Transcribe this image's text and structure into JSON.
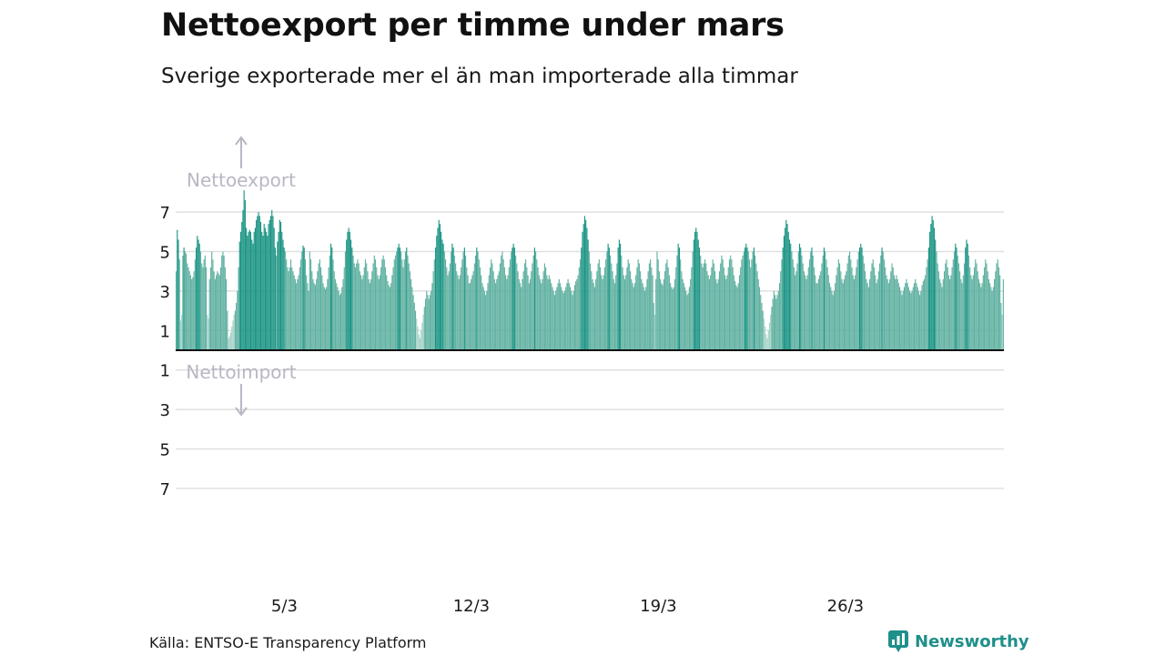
{
  "title": "Nettoexport per timme under mars",
  "subtitle": "Sverige exporterade mer el än man importerade alla timmar",
  "source": "Källa: ENTSO-E Transparency Platform",
  "brand": "Newsworthy",
  "colors": {
    "bar_dark": "#1a9484",
    "bar_light": "#60b1a1",
    "bar_pale": "#a6d3c8",
    "grid": "#e0e0e0",
    "annotation": "#b8b8c4",
    "brand": "#1f8f8a"
  },
  "chart_data": {
    "type": "bar",
    "title": "Nettoexport per timme under mars",
    "subtitle": "Sverige exporterade mer el än man importerade alla timmar",
    "xlabel": "",
    "ylabel": "",
    "x_unit": "day of March (hourly bars)",
    "xlim": [
      1,
      32
    ],
    "ylim": [
      -7.5,
      8.2
    ],
    "grid": true,
    "legend": "none",
    "yticks": [
      {
        "value": 7,
        "label": "7"
      },
      {
        "value": 5,
        "label": "5"
      },
      {
        "value": 3,
        "label": "3"
      },
      {
        "value": 1,
        "label": "1"
      },
      {
        "value": -1,
        "label": "1"
      },
      {
        "value": -3,
        "label": "3"
      },
      {
        "value": -5,
        "label": "5"
      },
      {
        "value": -7,
        "label": "7"
      }
    ],
    "xticks": [
      {
        "value": 5,
        "label": "5/3"
      },
      {
        "value": 12,
        "label": "12/3"
      },
      {
        "value": 19,
        "label": "19/3"
      },
      {
        "value": 26,
        "label": "26/3"
      }
    ],
    "annotations": {
      "export": "Nettoexport",
      "import": "Nettoimport"
    },
    "daily_profile": [
      [
        4.0,
        6.1,
        5.6,
        4.6,
        1.5,
        1.8,
        4.8,
        5.2,
        5.0,
        4.9,
        4.4,
        4.2,
        4.0,
        3.8,
        3.6,
        3.7,
        4.0,
        4.6,
        5.2,
        5.8,
        5.6,
        5.4,
        5.0,
        4.4
      ],
      [
        4.2,
        4.6,
        4.8,
        4.2,
        1.8,
        1.6,
        3.6,
        4.2,
        5.0,
        4.6,
        4.0,
        3.6,
        3.8,
        4.0,
        3.9,
        3.8,
        4.2,
        4.8,
        5.0,
        4.8,
        4.2,
        3.6,
        2.0,
        0.6
      ],
      [
        0.7,
        0.9,
        1.2,
        1.5,
        1.8,
        2.0,
        2.4,
        3.0,
        4.2,
        5.5,
        6.0,
        6.5,
        7.1,
        8.1,
        7.6,
        6.2,
        5.8,
        6.0,
        6.1,
        6.0,
        5.6,
        5.4,
        6.0,
        6.2
      ],
      [
        6.6,
        6.8,
        7.0,
        6.8,
        6.5,
        6.0,
        5.8,
        6.4,
        6.2,
        6.0,
        5.8,
        6.4,
        6.6,
        6.8,
        7.1,
        6.8,
        6.2,
        5.2,
        4.8,
        5.5,
        6.0,
        6.6,
        6.5,
        6.0
      ],
      [
        5.6,
        5.2,
        5.0,
        4.6,
        4.2,
        4.0,
        4.2,
        4.6,
        4.2,
        4.0,
        3.8,
        3.6,
        3.4,
        3.6,
        3.8,
        4.2,
        4.6,
        5.0,
        5.3,
        5.2,
        4.6,
        3.8,
        3.4,
        3.0
      ]
    ],
    "weekly_profile": [
      [
        5.0,
        4.6,
        4.0,
        3.6,
        3.4,
        3.3,
        3.6,
        4.0,
        4.4,
        4.6,
        4.2,
        3.8,
        3.4,
        3.2,
        3.1,
        3.2,
        3.6,
        4.2,
        4.8,
        5.4,
        5.2,
        4.6,
        4.0,
        3.6
      ],
      [
        3.4,
        3.2,
        3.0,
        2.8,
        2.9,
        3.2,
        3.6,
        4.2,
        5.0,
        5.6,
        6.0,
        6.2,
        6.0,
        5.6,
        5.2,
        4.8,
        4.4,
        4.2,
        4.4,
        4.6,
        4.4,
        4.0,
        3.8,
        3.6
      ],
      [
        3.8,
        4.2,
        4.6,
        4.4,
        4.0,
        3.6,
        3.4,
        3.6,
        4.0,
        4.4,
        4.8,
        4.6,
        4.2,
        3.8,
        3.6,
        3.8,
        4.2,
        4.6,
        4.8,
        4.6,
        4.2,
        3.8,
        3.5,
        3.3
      ],
      [
        3.2,
        3.4,
        3.8,
        4.2,
        4.6,
        4.8,
        5.0,
        5.2,
        5.4,
        5.2,
        5.0,
        4.6,
        4.2,
        4.6,
        5.0,
        5.2,
        4.8,
        4.4,
        4.0,
        3.6,
        3.2,
        2.8,
        2.4,
        2.0
      ],
      [
        1.6,
        1.2,
        0.8,
        0.6,
        1.0,
        1.4,
        1.8,
        2.2,
        2.6,
        3.0,
        2.8,
        2.6,
        2.8,
        3.0,
        3.4,
        4.0,
        4.6,
        5.2,
        5.8,
        6.2,
        6.6,
        6.4,
        6.0,
        5.6
      ],
      [
        5.4,
        5.0,
        4.6,
        4.2,
        3.8,
        4.0,
        4.4,
        5.0,
        5.4,
        5.2,
        4.8,
        4.4,
        4.0,
        3.8,
        3.6,
        3.8,
        4.2,
        4.6,
        5.0,
        5.2,
        4.8,
        4.2,
        3.8,
        3.4
      ],
      [
        3.4,
        3.6,
        3.8,
        4.0,
        4.4,
        4.8,
        5.2,
        5.0,
        4.6,
        4.2,
        3.8,
        3.4,
        3.2,
        3.0,
        2.8,
        3.0,
        3.4,
        3.8,
        4.2,
        4.6,
        4.4,
        4.0,
        3.6,
        3.4
      ],
      [
        3.6,
        3.8,
        4.0,
        4.4,
        4.8,
        5.0,
        4.6,
        4.2,
        3.8,
        3.6,
        3.8,
        4.2,
        4.6,
        5.0,
        5.2,
        5.4,
        5.2,
        4.8,
        4.4,
        4.0,
        3.6,
        3.4,
        3.2,
        3.6
      ],
      [
        4.0,
        4.4,
        4.6,
        4.2,
        3.8,
        3.4,
        3.6,
        4.0,
        4.4,
        4.8,
        5.2,
        5.0,
        4.6,
        4.2,
        3.8,
        3.6,
        3.4,
        3.6,
        4.0,
        4.4,
        4.2,
        3.8,
        3.6,
        3.8
      ],
      [
        3.6,
        3.4,
        3.2,
        3.0,
        2.8,
        3.0,
        3.2,
        3.4,
        3.6,
        3.4,
        3.2,
        3.0,
        2.9,
        3.0,
        3.2,
        3.4,
        3.6,
        3.4,
        3.2,
        3.0,
        2.8,
        3.0,
        3.3,
        3.5
      ],
      [
        3.6,
        3.8,
        4.2,
        4.6,
        5.2,
        6.0,
        6.4,
        6.8,
        6.6,
        6.2,
        5.6,
        5.0,
        4.4,
        4.0,
        3.6,
        3.4,
        3.2,
        3.6,
        4.0,
        4.4,
        4.6,
        4.2,
        3.8,
        3.6
      ],
      [
        3.8,
        4.2,
        4.6,
        5.0,
        5.4,
        5.2,
        4.8,
        4.4,
        4.0,
        3.6,
        3.4,
        3.8,
        4.4,
        5.2,
        5.6,
        5.4,
        4.8,
        4.2,
        3.8,
        3.6,
        3.8,
        4.2,
        4.6,
        4.4
      ],
      [
        4.0,
        3.6,
        3.4,
        3.2,
        3.4,
        3.8,
        4.2,
        4.6,
        4.4,
        4.0,
        3.6,
        3.4,
        3.2,
        3.0,
        3.2,
        3.6,
        4.0,
        4.4,
        4.6,
        4.2,
        3.8,
        2.4,
        1.8,
        3.6
      ]
    ]
  }
}
